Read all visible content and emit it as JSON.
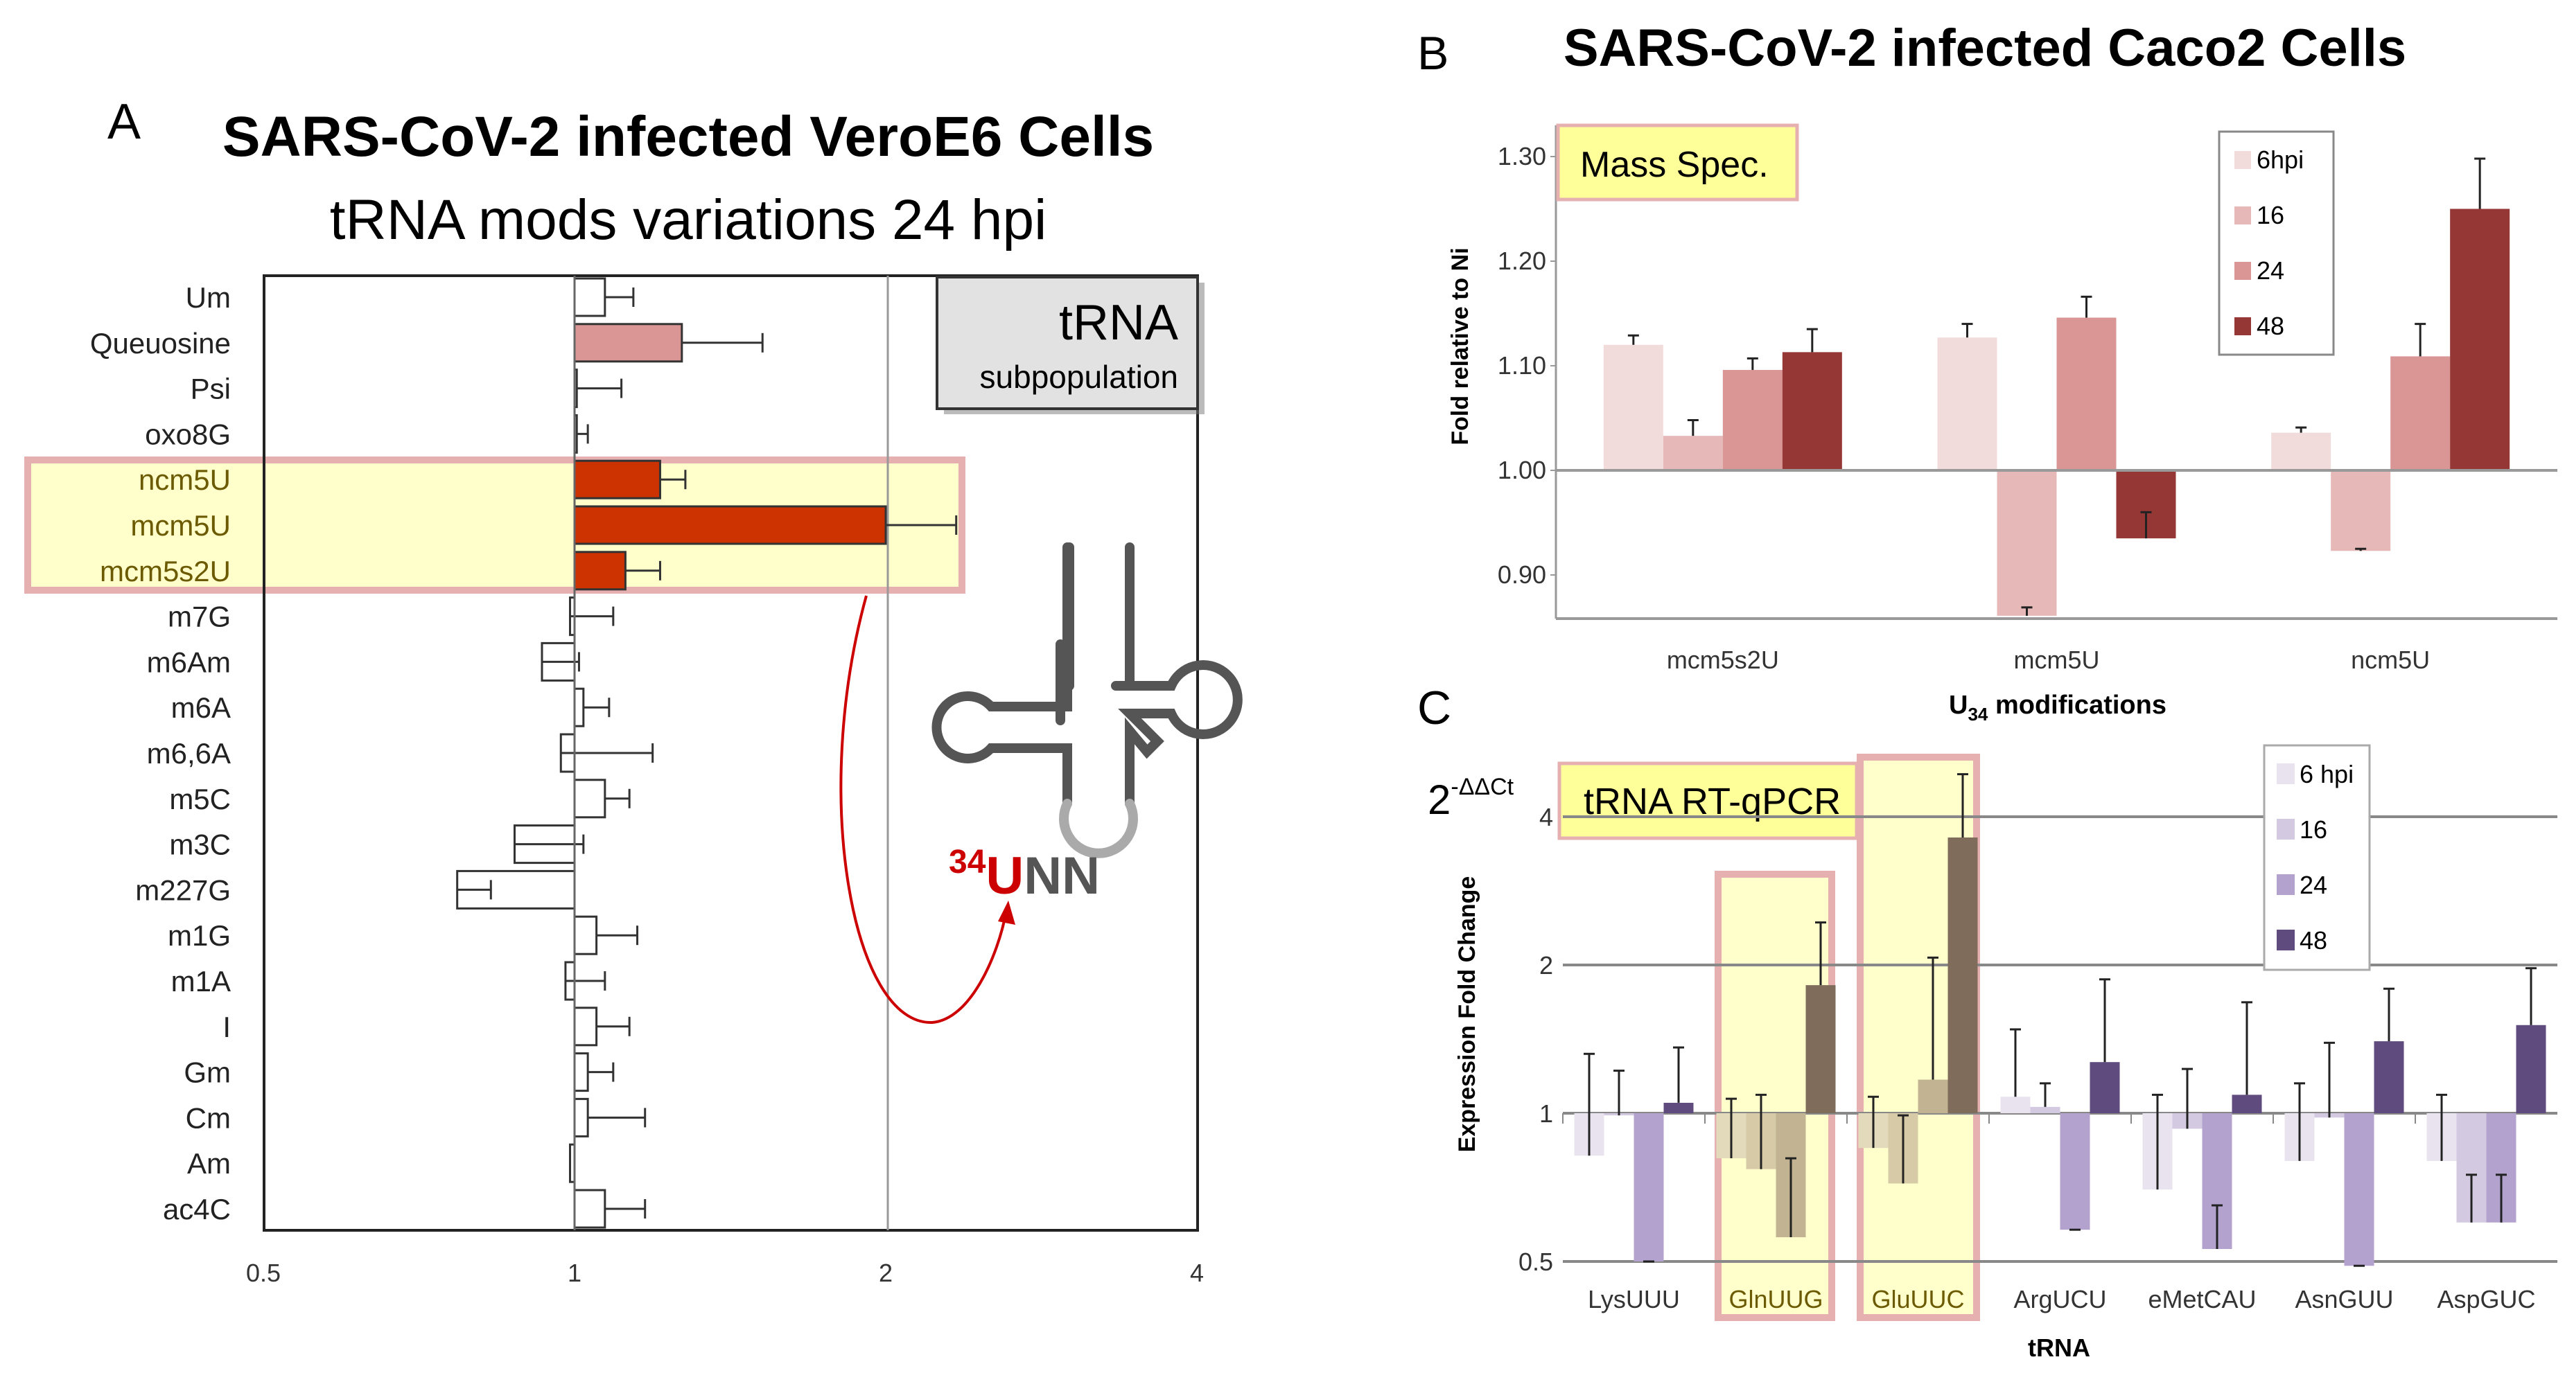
{
  "panel_a": {
    "letter": "A",
    "title": "SARS-CoV-2 infected VeroE6 Cells",
    "subtitle": "tRNA mods variations 24 hpi",
    "box_title": "tRNA",
    "box_subtitle": "subpopulation",
    "anticodon_superscript": "34",
    "anticodon_u": "U",
    "anticodon_rest": "NN",
    "colors": {
      "default": "#ffffff",
      "queuosine": "#d99694",
      "u34": "#cc3300",
      "highlight_fill": "#ffffcc",
      "highlight_border": "#e6b0b0",
      "arrow": "#cc0000"
    }
  },
  "panel_b": {
    "letter": "B",
    "title": "SARS-CoV-2 infected Caco2 Cells",
    "box_label": "Mass Spec.",
    "colors": [
      "#f2dcdb",
      "#e6b9b8",
      "#d99694",
      "#953735"
    ]
  },
  "panel_c": {
    "letter": "C",
    "y_title_prefix": "2",
    "y_title_sup": "-ΔΔCt",
    "box_label": "tRNA RT-qPCR",
    "colors": [
      "#e8e3ef",
      "#d3c9e1",
      "#b3a2cd",
      "#5f4b7d"
    ],
    "highlight_colors": [
      "#e2dabb",
      "#d6cba6",
      "#c2b393",
      "#7f6c5a"
    ]
  },
  "chart_data": [
    {
      "type": "bar",
      "orientation": "horizontal",
      "scale": "log2",
      "xlim": [
        0.5,
        4
      ],
      "xticks": [
        "0.5",
        "1",
        "2",
        "4"
      ],
      "baseline": 1,
      "categories": [
        "Um",
        "Queuosine",
        "Psi",
        "oxo8G",
        "ncm5U",
        "mcm5U",
        "mcm5s2U",
        "m7G",
        "m6Am",
        "m6A",
        "m6,6A",
        "m5C",
        "m3C",
        "m227G",
        "m1G",
        "m1A",
        "I",
        "Gm",
        "Cm",
        "Am",
        "ac4C"
      ],
      "values": [
        1.07,
        1.27,
        1.005,
        1.005,
        1.21,
        2.0,
        1.12,
        0.99,
        0.93,
        1.02,
        0.97,
        1.07,
        0.875,
        0.77,
        1.05,
        0.98,
        1.05,
        1.03,
        1.03,
        0.99,
        1.07
      ],
      "error_ends": [
        1.14,
        1.52,
        1.11,
        1.03,
        1.28,
        2.34,
        1.21,
        1.09,
        1.01,
        1.08,
        1.19,
        1.13,
        1.02,
        0.83,
        1.15,
        1.07,
        1.13,
        1.09,
        1.17,
        0.99,
        1.17
      ],
      "highlighted": [
        "ncm5U",
        "mcm5U",
        "mcm5s2U"
      ],
      "grid": "vertical line at 2"
    },
    {
      "type": "bar",
      "categories": [
        "mcm5s2U",
        "mcm5U",
        "ncm5U"
      ],
      "baseline": 1.0,
      "ylim": [
        0.857,
        1.33
      ],
      "yticks": [
        "0.90",
        "1.00",
        "1.10",
        "1.20",
        "1.30"
      ],
      "ylabel": "Fold relative to Ni",
      "xlabel_main": "U",
      "xlabel_sub": "34",
      "xlabel_rest": " modifications",
      "legend_position": "top-right",
      "series": [
        {
          "name": "6hpi",
          "values": [
            1.12,
            1.127,
            1.036
          ],
          "error_ends": [
            1.129,
            1.14,
            1.041
          ]
        },
        {
          "name": "16",
          "values": [
            1.033,
            0.861,
            0.923
          ],
          "error_ends": [
            1.048,
            0.869,
            0.925
          ]
        },
        {
          "name": "24",
          "values": [
            1.096,
            1.146,
            1.109
          ],
          "error_ends": [
            1.107,
            1.166,
            1.14
          ]
        },
        {
          "name": "48",
          "values": [
            1.113,
            0.935,
            1.25
          ],
          "error_ends": [
            1.135,
            0.96,
            1.298
          ]
        }
      ]
    },
    {
      "type": "bar",
      "scale": "log2",
      "categories": [
        "LysUUU",
        "GlnUUG",
        "GluUUC",
        "ArgUCU",
        "eMetCAU",
        "AsnGUU",
        "AspGUC"
      ],
      "highlighted": [
        "GlnUUG",
        "GluUUC"
      ],
      "baseline": 1,
      "ylim": [
        0.5,
        5.2
      ],
      "yticks": [
        "0.5",
        "1",
        "2",
        "4"
      ],
      "ylabel": "Expression Fold Change",
      "xlabel": "tRNA",
      "grid": "horizontal",
      "legend_position": "top-right",
      "series": [
        {
          "name": "6 hpi",
          "values": [
            0.82,
            0.81,
            0.85,
            1.08,
            0.7,
            0.8,
            0.8
          ],
          "error_ends": [
            1.32,
            1.07,
            1.08,
            1.48,
            1.09,
            1.15,
            1.09
          ]
        },
        {
          "name": "16",
          "values": [
            0.99,
            0.77,
            0.72,
            1.03,
            0.93,
            0.98,
            0.6
          ],
          "error_ends": [
            1.22,
            1.09,
            0.99,
            1.15,
            1.23,
            1.39,
            0.75
          ]
        },
        {
          "name": "24",
          "values": [
            0.5,
            0.56,
            1.17,
            0.58,
            0.53,
            0.49,
            0.6
          ],
          "error_ends": [
            0.5,
            0.81,
            2.07,
            0.58,
            0.65,
            0.49,
            0.75
          ]
        },
        {
          "name": "48",
          "values": [
            1.05,
            1.82,
            3.63,
            1.27,
            1.09,
            1.4,
            1.51
          ],
          "error_ends": [
            1.36,
            2.44,
            4.88,
            1.87,
            1.68,
            1.79,
            1.97
          ]
        }
      ]
    }
  ]
}
